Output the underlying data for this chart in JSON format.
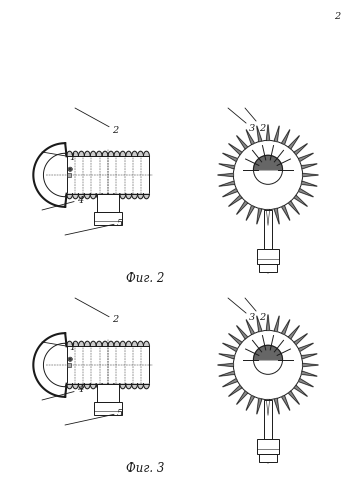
{
  "page_number": "2",
  "fig2_label": "Фиг. 2",
  "fig3_label": "Фиг. 3",
  "bg_color": "#ffffff",
  "line_color": "#1a1a1a",
  "lw": 0.7,
  "lw_thick": 1.5,
  "lw_thin": 0.4,
  "label_fs": 7.0,
  "fig_label_fs": 8.5
}
